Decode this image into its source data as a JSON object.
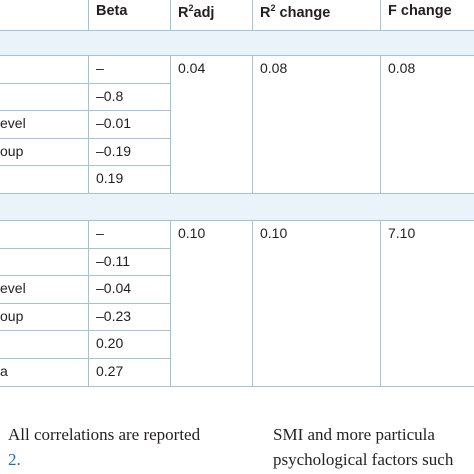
{
  "table": {
    "header": [
      {
        "text": "Beta"
      },
      {
        "text": "R",
        "sup": "2",
        "after": "adj"
      },
      {
        "text": "R",
        "sup": "2",
        "after": " change"
      },
      {
        "text": "F change"
      }
    ],
    "blocks": [
      {
        "r2adj": "0.04",
        "r2change": "0.08",
        "fchange": "0.08",
        "rows": [
          {
            "beta": "–"
          },
          {
            "beta": "–0.8"
          },
          {
            "label": "evel",
            "beta": "–0.01"
          },
          {
            "label": "oup",
            "beta": "–0.19"
          },
          {
            "beta": "0.19"
          }
        ]
      },
      {
        "r2adj": "0.10",
        "r2change": "0.10",
        "fchange": "7.10",
        "rows": [
          {
            "beta": "–"
          },
          {
            "beta": "–0.11"
          },
          {
            "label": "evel",
            "beta": "–0.04"
          },
          {
            "label": "oup",
            "beta": "–0.23"
          },
          {
            "beta": "0.20"
          },
          {
            "label": "a",
            "beta": "0.27"
          }
        ]
      }
    ]
  },
  "footer": {
    "left": [
      "All correlations are reported",
      "2."
    ],
    "right": [
      "SMI and more particula",
      "psychological factors such"
    ]
  }
}
